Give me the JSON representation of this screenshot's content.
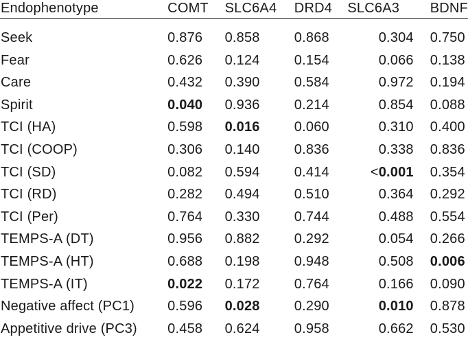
{
  "table": {
    "headers": [
      "Endophenotype",
      "COMT",
      "SLC6A4",
      "DRD4",
      "SLC6A3",
      "BDNF"
    ],
    "rows": [
      {
        "label": "Seek",
        "cells": [
          {
            "value": "0.876",
            "bold": false
          },
          {
            "value": "0.858",
            "bold": false
          },
          {
            "value": "0.868",
            "bold": false
          },
          {
            "value": "0.304",
            "bold": false
          },
          {
            "value": "0.750",
            "bold": false
          }
        ]
      },
      {
        "label": "Fear",
        "cells": [
          {
            "value": "0.626",
            "bold": false
          },
          {
            "value": "0.124",
            "bold": false
          },
          {
            "value": "0.154",
            "bold": false
          },
          {
            "value": "0.066",
            "bold": false
          },
          {
            "value": "0.138",
            "bold": false
          }
        ]
      },
      {
        "label": "Care",
        "cells": [
          {
            "value": "0.432",
            "bold": false
          },
          {
            "value": "0.390",
            "bold": false
          },
          {
            "value": "0.584",
            "bold": false
          },
          {
            "value": "0.972",
            "bold": false
          },
          {
            "value": "0.194",
            "bold": false
          }
        ]
      },
      {
        "label": "Spirit",
        "cells": [
          {
            "value": "0.040",
            "bold": true
          },
          {
            "value": "0.936",
            "bold": false
          },
          {
            "value": "0.214",
            "bold": false
          },
          {
            "value": "0.854",
            "bold": false
          },
          {
            "value": "0.088",
            "bold": false
          }
        ]
      },
      {
        "label": "TCI (HA)",
        "cells": [
          {
            "value": "0.598",
            "bold": false
          },
          {
            "value": "0.016",
            "bold": true
          },
          {
            "value": "0.060",
            "bold": false
          },
          {
            "value": "0.310",
            "bold": false
          },
          {
            "value": "0.400",
            "bold": false
          }
        ]
      },
      {
        "label": "TCI (COOP)",
        "cells": [
          {
            "value": "0.306",
            "bold": false
          },
          {
            "value": "0.140",
            "bold": false
          },
          {
            "value": "0.836",
            "bold": false
          },
          {
            "value": "0.338",
            "bold": false
          },
          {
            "value": "0.836",
            "bold": false
          }
        ]
      },
      {
        "label": "TCI (SD)",
        "cells": [
          {
            "value": "0.082",
            "bold": false
          },
          {
            "value": "0.594",
            "bold": false
          },
          {
            "value": "0.414",
            "bold": false
          },
          {
            "value": "0.001",
            "bold": true,
            "prefix": "<"
          },
          {
            "value": "0.354",
            "bold": false
          }
        ]
      },
      {
        "label": "TCI (RD)",
        "cells": [
          {
            "value": "0.282",
            "bold": false
          },
          {
            "value": "0.494",
            "bold": false
          },
          {
            "value": "0.510",
            "bold": false
          },
          {
            "value": "0.364",
            "bold": false
          },
          {
            "value": "0.292",
            "bold": false
          }
        ]
      },
      {
        "label": "TCI (Per)",
        "cells": [
          {
            "value": "0.764",
            "bold": false
          },
          {
            "value": "0.330",
            "bold": false
          },
          {
            "value": "0.744",
            "bold": false
          },
          {
            "value": "0.488",
            "bold": false
          },
          {
            "value": "0.554",
            "bold": false
          }
        ]
      },
      {
        "label": "TEMPS-A (DT)",
        "cells": [
          {
            "value": "0.956",
            "bold": false
          },
          {
            "value": "0.882",
            "bold": false
          },
          {
            "value": "0.292",
            "bold": false
          },
          {
            "value": "0.054",
            "bold": false
          },
          {
            "value": "0.266",
            "bold": false
          }
        ]
      },
      {
        "label": "TEMPS-A (HT)",
        "cells": [
          {
            "value": "0.688",
            "bold": false
          },
          {
            "value": "0.198",
            "bold": false
          },
          {
            "value": "0.948",
            "bold": false
          },
          {
            "value": "0.508",
            "bold": false
          },
          {
            "value": "0.006",
            "bold": true
          }
        ]
      },
      {
        "label": "TEMPS-A (IT)",
        "cells": [
          {
            "value": "0.022",
            "bold": true
          },
          {
            "value": "0.172",
            "bold": false
          },
          {
            "value": "0.764",
            "bold": false
          },
          {
            "value": "0.166",
            "bold": false
          },
          {
            "value": "0.090",
            "bold": false
          }
        ]
      },
      {
        "label": "Negative affect (PC1)",
        "cells": [
          {
            "value": "0.596",
            "bold": false
          },
          {
            "value": "0.028",
            "bold": true
          },
          {
            "value": "0.290",
            "bold": false
          },
          {
            "value": "0.010",
            "bold": true
          },
          {
            "value": "0.878",
            "bold": false
          }
        ]
      },
      {
        "label": "Appetitive drive (PC3)",
        "cells": [
          {
            "value": "0.458",
            "bold": false
          },
          {
            "value": "0.624",
            "bold": false
          },
          {
            "value": "0.958",
            "bold": false
          },
          {
            "value": "0.662",
            "bold": false
          },
          {
            "value": "0.530",
            "bold": false
          }
        ]
      }
    ]
  }
}
